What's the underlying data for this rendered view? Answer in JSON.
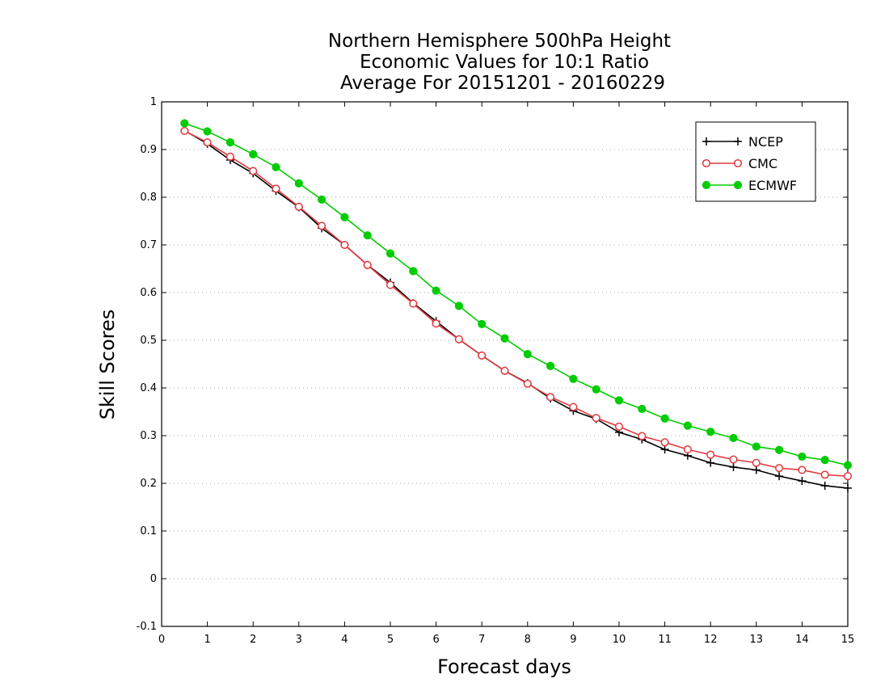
{
  "chart_data": {
    "type": "line",
    "title_lines": [
      "Northern Hemisphere 500hPa Height",
      "Economic Values for 10:1 Ratio",
      "Average For 20151201 - 20160229"
    ],
    "xlabel": "Forecast days",
    "ylabel": "Skill Scores",
    "xlim": [
      0,
      15
    ],
    "ylim": [
      -0.1,
      1
    ],
    "xticks": [
      "0",
      "1",
      "2",
      "3",
      "4",
      "5",
      "6",
      "7",
      "8",
      "9",
      "10",
      "11",
      "12",
      "13",
      "14",
      "15"
    ],
    "yticks": [
      "-0.1",
      "0",
      "0.1",
      "0.2",
      "0.3",
      "0.4",
      "0.5",
      "0.6",
      "0.7",
      "0.8",
      "0.9",
      "1"
    ],
    "grid": "horizontal dotted",
    "legend_position": "top-right",
    "x": [
      0.5,
      1,
      1.5,
      2,
      2.5,
      3,
      3.5,
      4,
      4.5,
      5,
      5.5,
      6,
      6.5,
      7,
      7.5,
      8,
      8.5,
      9,
      9.5,
      10,
      10.5,
      11,
      11.5,
      12,
      12.5,
      13,
      13.5,
      14,
      14.5,
      15
    ],
    "series": [
      {
        "name": "NCEP",
        "color": "#000000",
        "marker": "plus",
        "values": [
          0.94,
          0.912,
          0.878,
          0.85,
          0.813,
          0.779,
          0.735,
          0.7,
          0.658,
          0.621,
          0.578,
          0.54,
          0.502,
          0.468,
          0.436,
          0.41,
          0.378,
          0.352,
          0.335,
          0.307,
          0.292,
          0.271,
          0.258,
          0.243,
          0.234,
          0.228,
          0.215,
          0.205,
          0.195,
          0.19
        ]
      },
      {
        "name": "CMC",
        "color": "#e0393e",
        "marker": "open-circle",
        "values": [
          0.939,
          0.915,
          0.885,
          0.855,
          0.818,
          0.78,
          0.74,
          0.7,
          0.658,
          0.616,
          0.577,
          0.535,
          0.502,
          0.468,
          0.436,
          0.409,
          0.381,
          0.36,
          0.337,
          0.319,
          0.299,
          0.286,
          0.271,
          0.26,
          0.25,
          0.243,
          0.232,
          0.228,
          0.218,
          0.215
        ]
      },
      {
        "name": "ECMWF",
        "color": "#00cc00",
        "marker": "filled-circle",
        "values": [
          0.955,
          0.938,
          0.915,
          0.89,
          0.863,
          0.829,
          0.795,
          0.758,
          0.72,
          0.682,
          0.645,
          0.604,
          0.572,
          0.534,
          0.504,
          0.471,
          0.446,
          0.419,
          0.397,
          0.374,
          0.356,
          0.336,
          0.321,
          0.308,
          0.295,
          0.277,
          0.27,
          0.256,
          0.249,
          0.238
        ]
      }
    ]
  }
}
